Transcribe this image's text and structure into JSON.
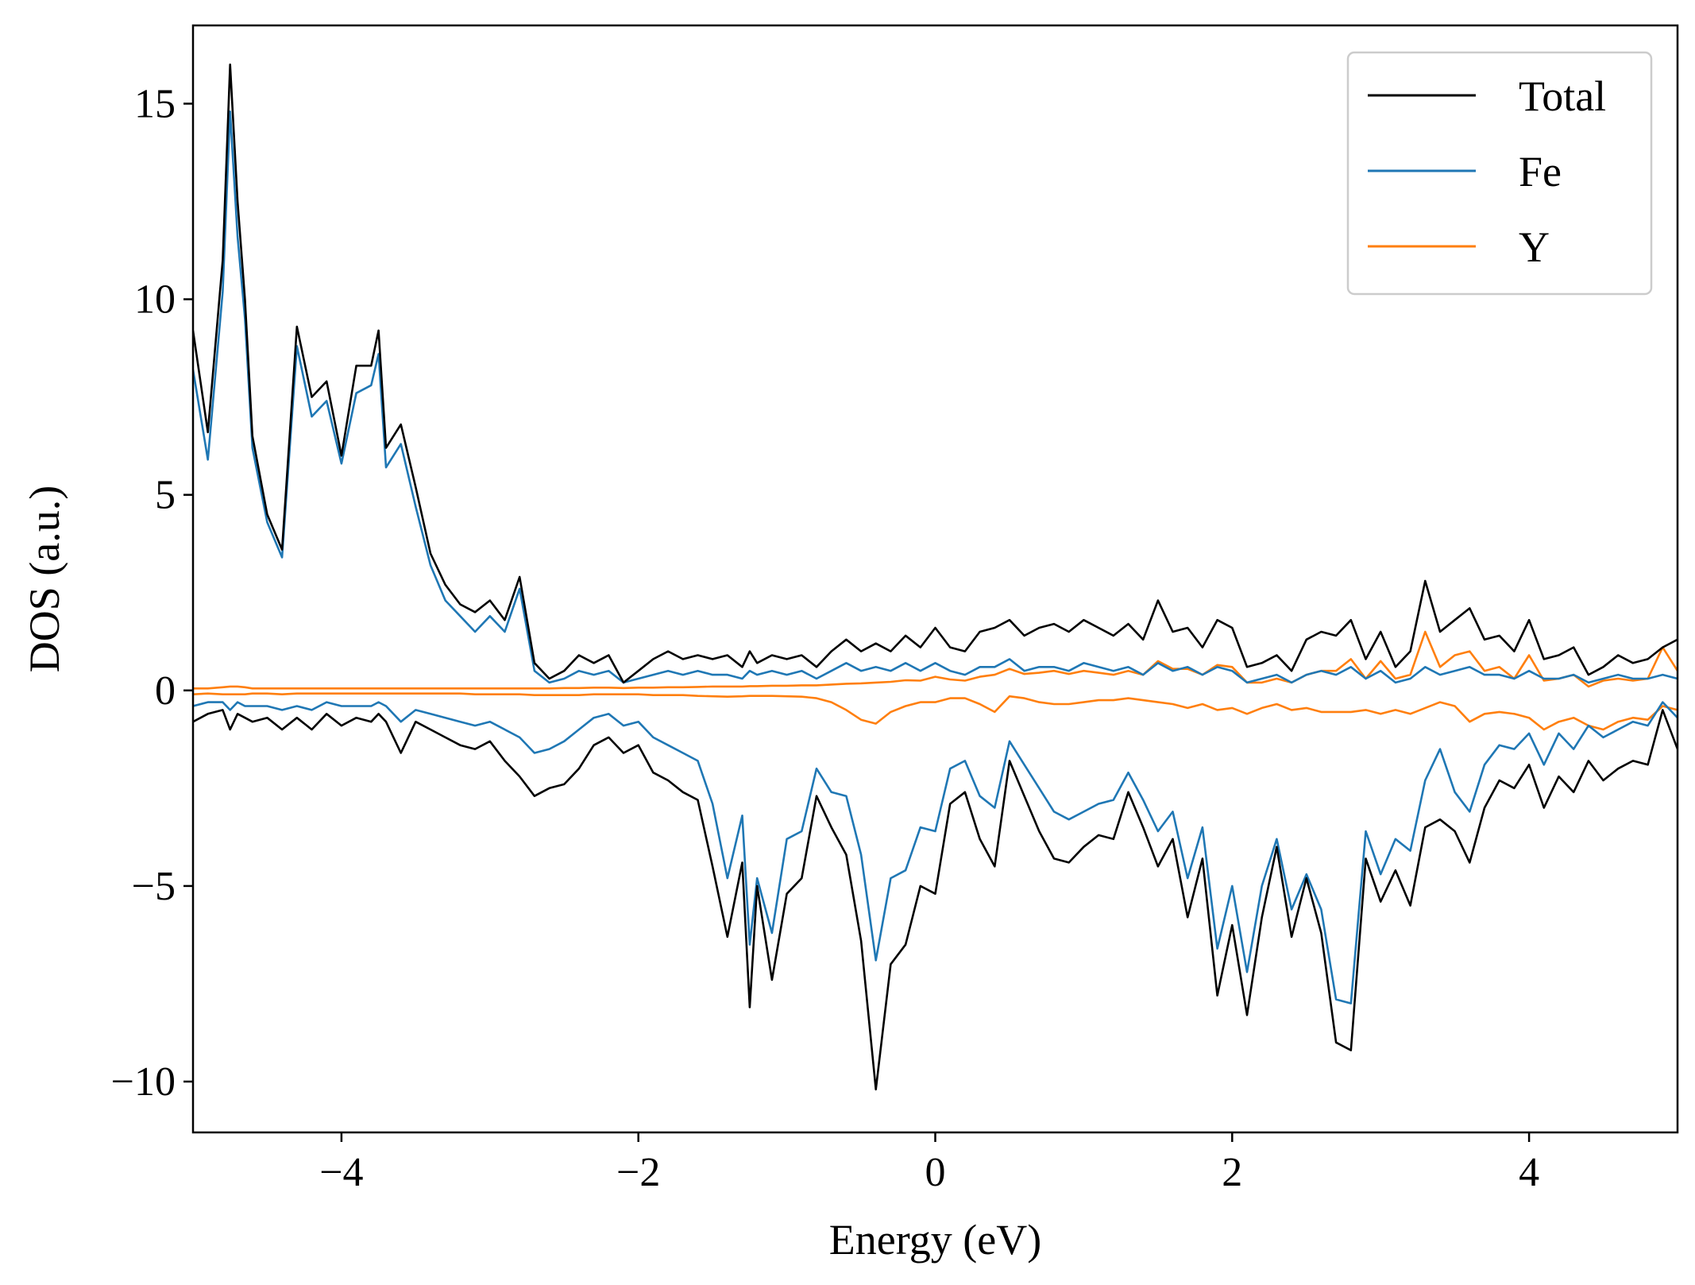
{
  "chart_data": {
    "type": "line",
    "xlabel": "Energy (eV)",
    "ylabel": "DOS (a.u.)",
    "xlim": [
      -5,
      5
    ],
    "ylim": [
      -11.3,
      17
    ],
    "xticks": [
      -4,
      -2,
      0,
      2,
      4
    ],
    "xtick_labels": [
      "−4",
      "−2",
      "0",
      "2",
      "4"
    ],
    "yticks": [
      -10,
      -5,
      0,
      5,
      10,
      15
    ],
    "ytick_labels": [
      "−10",
      "−5",
      "0",
      "5",
      "10",
      "15"
    ],
    "grid": false,
    "legend_position": "top-right",
    "x": [
      -5.0,
      -4.9,
      -4.8,
      -4.75,
      -4.7,
      -4.65,
      -4.6,
      -4.5,
      -4.4,
      -4.3,
      -4.2,
      -4.1,
      -4.0,
      -3.9,
      -3.8,
      -3.75,
      -3.7,
      -3.6,
      -3.5,
      -3.4,
      -3.3,
      -3.2,
      -3.1,
      -3.0,
      -2.9,
      -2.8,
      -2.7,
      -2.6,
      -2.5,
      -2.4,
      -2.3,
      -2.2,
      -2.1,
      -2.0,
      -1.9,
      -1.8,
      -1.7,
      -1.6,
      -1.5,
      -1.4,
      -1.3,
      -1.25,
      -1.2,
      -1.1,
      -1.0,
      -0.9,
      -0.8,
      -0.7,
      -0.6,
      -0.5,
      -0.4,
      -0.3,
      -0.2,
      -0.1,
      0.0,
      0.1,
      0.2,
      0.3,
      0.4,
      0.5,
      0.6,
      0.7,
      0.8,
      0.9,
      1.0,
      1.1,
      1.2,
      1.3,
      1.4,
      1.5,
      1.6,
      1.7,
      1.8,
      1.9,
      2.0,
      2.1,
      2.2,
      2.3,
      2.4,
      2.5,
      2.6,
      2.7,
      2.8,
      2.9,
      3.0,
      3.1,
      3.2,
      3.3,
      3.4,
      3.5,
      3.6,
      3.7,
      3.8,
      3.9,
      4.0,
      4.1,
      4.2,
      4.3,
      4.4,
      4.5,
      4.6,
      4.7,
      4.8,
      4.9,
      5.0
    ],
    "series": [
      {
        "name": "Total",
        "color": "#000000",
        "up": [
          9.2,
          6.6,
          11.0,
          16.0,
          12.5,
          10.0,
          6.5,
          4.5,
          3.6,
          9.3,
          7.5,
          7.9,
          6.0,
          8.3,
          8.3,
          9.2,
          6.2,
          6.8,
          5.2,
          3.5,
          2.7,
          2.2,
          2.0,
          2.3,
          1.8,
          2.9,
          0.7,
          0.3,
          0.5,
          0.9,
          0.7,
          0.9,
          0.2,
          0.5,
          0.8,
          1.0,
          0.8,
          0.9,
          0.8,
          0.9,
          0.6,
          1.0,
          0.7,
          0.9,
          0.8,
          0.9,
          0.6,
          1.0,
          1.3,
          1.0,
          1.2,
          1.0,
          1.4,
          1.1,
          1.6,
          1.1,
          1.0,
          1.5,
          1.6,
          1.8,
          1.4,
          1.6,
          1.7,
          1.5,
          1.8,
          1.6,
          1.4,
          1.7,
          1.3,
          2.3,
          1.5,
          1.6,
          1.1,
          1.8,
          1.6,
          0.6,
          0.7,
          0.9,
          0.5,
          1.3,
          1.5,
          1.4,
          1.8,
          0.8,
          1.5,
          0.6,
          1.0,
          2.8,
          1.5,
          1.8,
          2.1,
          1.3,
          1.4,
          1.0,
          1.8,
          0.8,
          0.9,
          1.1,
          0.4,
          0.6,
          0.9,
          0.7,
          0.8,
          1.1,
          1.3
        ],
        "down": [
          -0.8,
          -0.6,
          -0.5,
          -1.0,
          -0.6,
          -0.7,
          -0.8,
          -0.7,
          -1.0,
          -0.7,
          -1.0,
          -0.6,
          -0.9,
          -0.7,
          -0.8,
          -0.6,
          -0.8,
          -1.6,
          -0.8,
          -1.0,
          -1.2,
          -1.4,
          -1.5,
          -1.3,
          -1.8,
          -2.2,
          -2.7,
          -2.5,
          -2.4,
          -2.0,
          -1.4,
          -1.2,
          -1.6,
          -1.4,
          -2.1,
          -2.3,
          -2.6,
          -2.8,
          -4.5,
          -6.3,
          -4.4,
          -8.1,
          -5.0,
          -7.4,
          -5.2,
          -4.8,
          -2.7,
          -3.5,
          -4.2,
          -6.4,
          -10.2,
          -7.0,
          -6.5,
          -5.0,
          -5.2,
          -2.9,
          -2.6,
          -3.8,
          -4.5,
          -1.8,
          -2.7,
          -3.6,
          -4.3,
          -4.4,
          -4.0,
          -3.7,
          -3.8,
          -2.6,
          -3.5,
          -4.5,
          -3.8,
          -5.8,
          -4.3,
          -7.8,
          -6.0,
          -8.3,
          -5.8,
          -4.0,
          -6.3,
          -4.8,
          -6.2,
          -9.0,
          -9.2,
          -4.3,
          -5.4,
          -4.6,
          -5.5,
          -3.5,
          -3.3,
          -3.6,
          -4.4,
          -3.0,
          -2.3,
          -2.5,
          -1.9,
          -3.0,
          -2.2,
          -2.6,
          -1.8,
          -2.3,
          -2.0,
          -1.8,
          -1.9,
          -0.5,
          -1.5
        ]
      },
      {
        "name": "Fe",
        "color": "#1f77b4",
        "up": [
          8.2,
          5.9,
          10.2,
          14.8,
          11.6,
          9.5,
          6.2,
          4.3,
          3.4,
          8.8,
          7.0,
          7.4,
          5.8,
          7.6,
          7.8,
          8.6,
          5.7,
          6.3,
          4.7,
          3.2,
          2.3,
          1.9,
          1.5,
          1.9,
          1.5,
          2.6,
          0.5,
          0.2,
          0.3,
          0.5,
          0.4,
          0.5,
          0.2,
          0.3,
          0.4,
          0.5,
          0.4,
          0.5,
          0.4,
          0.4,
          0.3,
          0.5,
          0.4,
          0.5,
          0.4,
          0.5,
          0.3,
          0.5,
          0.7,
          0.5,
          0.6,
          0.5,
          0.7,
          0.5,
          0.7,
          0.5,
          0.4,
          0.6,
          0.6,
          0.8,
          0.5,
          0.6,
          0.6,
          0.5,
          0.7,
          0.6,
          0.5,
          0.6,
          0.4,
          0.7,
          0.5,
          0.6,
          0.4,
          0.6,
          0.5,
          0.2,
          0.3,
          0.4,
          0.2,
          0.4,
          0.5,
          0.4,
          0.6,
          0.3,
          0.5,
          0.2,
          0.3,
          0.6,
          0.4,
          0.5,
          0.6,
          0.4,
          0.4,
          0.3,
          0.5,
          0.3,
          0.3,
          0.4,
          0.2,
          0.3,
          0.4,
          0.3,
          0.3,
          0.4,
          0.3
        ],
        "down": [
          -0.4,
          -0.3,
          -0.3,
          -0.5,
          -0.3,
          -0.4,
          -0.4,
          -0.4,
          -0.5,
          -0.4,
          -0.5,
          -0.3,
          -0.4,
          -0.4,
          -0.4,
          -0.3,
          -0.4,
          -0.8,
          -0.5,
          -0.6,
          -0.7,
          -0.8,
          -0.9,
          -0.8,
          -1.0,
          -1.2,
          -1.6,
          -1.5,
          -1.3,
          -1.0,
          -0.7,
          -0.6,
          -0.9,
          -0.8,
          -1.2,
          -1.4,
          -1.6,
          -1.8,
          -2.9,
          -4.8,
          -3.2,
          -6.5,
          -4.8,
          -6.2,
          -3.8,
          -3.6,
          -2.0,
          -2.6,
          -2.7,
          -4.2,
          -6.9,
          -4.8,
          -4.6,
          -3.5,
          -3.6,
          -2.0,
          -1.8,
          -2.7,
          -3.0,
          -1.3,
          -1.9,
          -2.5,
          -3.1,
          -3.3,
          -3.1,
          -2.9,
          -2.8,
          -2.1,
          -2.8,
          -3.6,
          -3.1,
          -4.8,
          -3.5,
          -6.6,
          -5.0,
          -7.2,
          -5.0,
          -3.8,
          -5.6,
          -4.7,
          -5.6,
          -7.9,
          -8.0,
          -3.6,
          -4.7,
          -3.8,
          -4.1,
          -2.3,
          -1.5,
          -2.6,
          -3.1,
          -1.9,
          -1.4,
          -1.5,
          -1.1,
          -1.9,
          -1.1,
          -1.5,
          -0.9,
          -1.2,
          -1.0,
          -0.8,
          -0.9,
          -0.3,
          -0.7
        ]
      },
      {
        "name": "Y",
        "color": "#ff7f0e",
        "up": [
          0.05,
          0.05,
          0.08,
          0.1,
          0.1,
          0.08,
          0.05,
          0.05,
          0.05,
          0.05,
          0.05,
          0.05,
          0.05,
          0.05,
          0.05,
          0.05,
          0.05,
          0.05,
          0.05,
          0.05,
          0.05,
          0.05,
          0.05,
          0.05,
          0.05,
          0.05,
          0.05,
          0.05,
          0.06,
          0.06,
          0.07,
          0.07,
          0.06,
          0.07,
          0.07,
          0.08,
          0.08,
          0.09,
          0.1,
          0.1,
          0.1,
          0.11,
          0.11,
          0.12,
          0.12,
          0.13,
          0.13,
          0.15,
          0.17,
          0.18,
          0.2,
          0.22,
          0.26,
          0.25,
          0.35,
          0.28,
          0.25,
          0.35,
          0.4,
          0.55,
          0.42,
          0.45,
          0.5,
          0.42,
          0.5,
          0.45,
          0.4,
          0.5,
          0.4,
          0.75,
          0.55,
          0.55,
          0.4,
          0.65,
          0.6,
          0.2,
          0.2,
          0.3,
          0.2,
          0.4,
          0.5,
          0.5,
          0.8,
          0.3,
          0.75,
          0.3,
          0.4,
          1.5,
          0.6,
          0.9,
          1.0,
          0.5,
          0.6,
          0.3,
          0.9,
          0.25,
          0.3,
          0.4,
          0.1,
          0.25,
          0.3,
          0.25,
          0.3,
          1.1,
          0.5
        ],
        "down": [
          -0.1,
          -0.08,
          -0.1,
          -0.1,
          -0.1,
          -0.1,
          -0.08,
          -0.08,
          -0.1,
          -0.08,
          -0.08,
          -0.08,
          -0.08,
          -0.08,
          -0.08,
          -0.08,
          -0.08,
          -0.08,
          -0.08,
          -0.08,
          -0.08,
          -0.08,
          -0.1,
          -0.1,
          -0.1,
          -0.1,
          -0.12,
          -0.12,
          -0.12,
          -0.12,
          -0.1,
          -0.1,
          -0.1,
          -0.1,
          -0.12,
          -0.12,
          -0.12,
          -0.14,
          -0.15,
          -0.16,
          -0.15,
          -0.14,
          -0.14,
          -0.14,
          -0.15,
          -0.16,
          -0.2,
          -0.3,
          -0.5,
          -0.75,
          -0.85,
          -0.55,
          -0.4,
          -0.3,
          -0.3,
          -0.2,
          -0.2,
          -0.35,
          -0.55,
          -0.15,
          -0.2,
          -0.3,
          -0.35,
          -0.35,
          -0.3,
          -0.25,
          -0.25,
          -0.2,
          -0.25,
          -0.3,
          -0.35,
          -0.45,
          -0.35,
          -0.5,
          -0.45,
          -0.6,
          -0.45,
          -0.35,
          -0.5,
          -0.45,
          -0.55,
          -0.55,
          -0.55,
          -0.5,
          -0.6,
          -0.5,
          -0.6,
          -0.45,
          -0.3,
          -0.4,
          -0.8,
          -0.6,
          -0.55,
          -0.6,
          -0.7,
          -1.0,
          -0.8,
          -0.7,
          -0.9,
          -1.0,
          -0.8,
          -0.7,
          -0.75,
          -0.4,
          -0.5
        ]
      }
    ]
  }
}
